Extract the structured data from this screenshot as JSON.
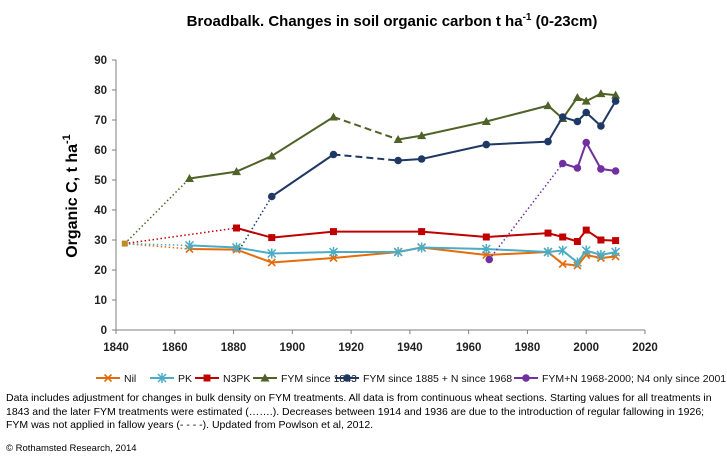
{
  "chart_data": {
    "type": "line",
    "title": "Broadbalk. Changes in soil organic carbon t ha",
    "title_superscript": "-1",
    "title_suffix": " (0-23cm)",
    "ylabel": "Organic C, t ha",
    "ylabel_superscript": "-1",
    "xlabel": "",
    "xlim": [
      1840,
      2020
    ],
    "ylim": [
      0,
      90
    ],
    "xticks": [
      1840,
      1860,
      1880,
      1900,
      1920,
      1940,
      1960,
      1980,
      2000,
      2020
    ],
    "yticks": [
      0,
      10,
      20,
      30,
      40,
      50,
      60,
      70,
      80,
      90
    ],
    "grid": false,
    "legend_position": "bottom",
    "series": [
      {
        "name": "Nil",
        "color": "#e46c0a",
        "marker": "x",
        "start": [
          1843,
          28.8
        ],
        "dotted": [
          [
            1843,
            28.8
          ],
          [
            1865,
            27.0
          ]
        ],
        "segments": [
          [
            [
              1865,
              27.0
            ],
            [
              1881,
              26.8
            ],
            [
              1893,
              22.5
            ],
            [
              1914,
              24.0
            ],
            [
              1936,
              26.0
            ],
            [
              1944,
              27.5
            ],
            [
              1966,
              25.0
            ],
            [
              1987,
              26.0
            ],
            [
              1992,
              22.0
            ],
            [
              1997,
              21.5
            ],
            [
              2000,
              25.0
            ],
            [
              2005,
              24.0
            ],
            [
              2010,
              24.5
            ]
          ]
        ]
      },
      {
        "name": "PK",
        "color": "#4bacc6",
        "marker": "asterisk",
        "start": [
          1843,
          28.8
        ],
        "dotted": [
          [
            1843,
            28.8
          ],
          [
            1865,
            28.2
          ]
        ],
        "segments": [
          [
            [
              1865,
              28.2
            ],
            [
              1881,
              27.5
            ],
            [
              1893,
              25.5
            ],
            [
              1914,
              26.0
            ],
            [
              1936,
              26.0
            ],
            [
              1944,
              27.5
            ],
            [
              1966,
              27.0
            ],
            [
              1987,
              26.0
            ],
            [
              1992,
              26.5
            ],
            [
              1997,
              22.5
            ],
            [
              2000,
              26.5
            ],
            [
              2005,
              25.0
            ],
            [
              2010,
              26.0
            ]
          ]
        ]
      },
      {
        "name": "N3PK",
        "color": "#c00000",
        "marker": "square",
        "start": [
          1843,
          28.8
        ],
        "dotted": [
          [
            1843,
            28.8
          ],
          [
            1881,
            34.0
          ]
        ],
        "segments": [
          [
            [
              1881,
              34.0
            ],
            [
              1893,
              30.8
            ],
            [
              1914,
              32.8
            ],
            [
              1944,
              32.8
            ],
            [
              1966,
              31.0
            ],
            [
              1987,
              32.3
            ],
            [
              1992,
              31.0
            ],
            [
              1997,
              29.5
            ],
            [
              2000,
              33.3
            ],
            [
              2005,
              30.0
            ],
            [
              2010,
              29.8
            ]
          ]
        ]
      },
      {
        "name": "FYM since 1843",
        "color": "#4f6228",
        "marker": "triangle",
        "start": [
          1843,
          28.8
        ],
        "dotted": [
          [
            1843,
            28.8
          ],
          [
            1865,
            50.5
          ]
        ],
        "dashed": [
          [
            1914,
            71.0
          ],
          [
            1936,
            63.5
          ]
        ],
        "segments": [
          [
            [
              1865,
              50.5
            ],
            [
              1881,
              52.8
            ],
            [
              1893,
              58.0
            ],
            [
              1914,
              71.0
            ]
          ],
          [
            [
              1936,
              63.5
            ],
            [
              1944,
              64.8
            ],
            [
              1966,
              69.5
            ],
            [
              1987,
              74.8
            ],
            [
              1992,
              70.5
            ],
            [
              1997,
              77.5
            ],
            [
              2000,
              76.3
            ],
            [
              2005,
              78.8
            ],
            [
              2010,
              78.3
            ]
          ]
        ]
      },
      {
        "name": "FYM since 1885 + N since 1968",
        "color": "#1f3864",
        "marker": "circle",
        "start": [
          1843,
          28.8
        ],
        "dotted": [
          [
            1882,
            26.8
          ],
          [
            1893,
            44.5
          ]
        ],
        "dashed": [
          [
            1914,
            58.5
          ],
          [
            1936,
            56.5
          ]
        ],
        "segments": [
          [
            [
              1893,
              44.5
            ],
            [
              1914,
              58.5
            ]
          ],
          [
            [
              1936,
              56.5
            ],
            [
              1944,
              57.0
            ],
            [
              1966,
              61.8
            ],
            [
              1987,
              62.8
            ],
            [
              1992,
              71.0
            ],
            [
              1997,
              69.5
            ],
            [
              2000,
              72.5
            ],
            [
              2005,
              68.0
            ],
            [
              2010,
              76.3
            ]
          ]
        ]
      },
      {
        "name": "FYM+N 1968-2000; N4 only since 2001",
        "color": "#7030a0",
        "marker": "circle",
        "dotted": [
          [
            1967,
            23.5
          ],
          [
            1992,
            55.5
          ]
        ],
        "segments": [
          [
            [
              1992,
              55.5
            ],
            [
              1997,
              54.0
            ],
            [
              2000,
              62.5
            ],
            [
              2005,
              53.7
            ],
            [
              2010,
              53.0
            ]
          ]
        ],
        "extra_points": [
          [
            1967,
            23.5
          ]
        ]
      }
    ]
  },
  "caption": "Data includes adjustment for changes in bulk density on FYM treatments. All data is from continuous wheat sections. Starting values for all treatments in 1843 and the later FYM treatments were estimated (…….). Decreases between 1914 and 1936 are due to the introduction of regular fallowing in 1926; FYM was not applied in fallow years (- - - -). Updated from Powlson et al, 2012.",
  "copyright": "© Rothamsted Research, 2014"
}
